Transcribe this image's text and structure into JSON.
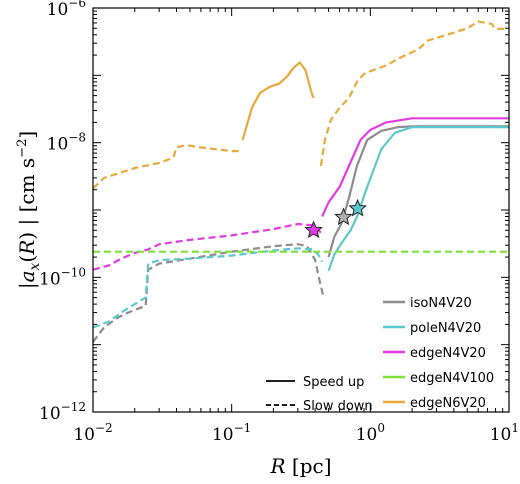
{
  "chart_data": {
    "type": "line",
    "title": "",
    "xlabel": "R [pc]",
    "ylabel": "|a_x(R)| [cm s^-2]",
    "xscale": "log",
    "yscale": "log",
    "xlim": [
      0.01,
      10
    ],
    "ylim": [
      1e-12,
      1e-06
    ],
    "xtick_labels": [
      {
        "v": 0.01,
        "base": "10",
        "exp": "−2"
      },
      {
        "v": 0.1,
        "base": "10",
        "exp": "−1"
      },
      {
        "v": 1,
        "base": "10",
        "exp": "0"
      },
      {
        "v": 10,
        "base": "10",
        "exp": "1"
      }
    ],
    "ytick_labels": [
      {
        "v": 1e-12,
        "base": "10",
        "exp": "−12"
      },
      {
        "v": 1e-10,
        "base": "10",
        "exp": "−10"
      },
      {
        "v": 1e-08,
        "base": "10",
        "exp": "−8"
      },
      {
        "v": 1e-06,
        "base": "10",
        "exp": "−6"
      }
    ],
    "legend_placement": "lower-right",
    "style_legend": [
      {
        "label": "Speed up",
        "dash": "solid"
      },
      {
        "label": "Slow down",
        "dash": "dashed"
      }
    ],
    "series": [
      {
        "name": "isoN4V20",
        "color": "#8c8c8c",
        "segments": [
          {
            "style": "dashed",
            "points": [
              [
                0.01,
                1.1e-11
              ],
              [
                0.012,
                1.8e-11
              ],
              [
                0.015,
                2.5e-11
              ],
              [
                0.018,
                3e-11
              ],
              [
                0.021,
                3.4e-11
              ],
              [
                0.024,
                3.8e-11
              ],
              [
                0.025,
                1.3e-10
              ],
              [
                0.03,
                1.6e-10
              ],
              [
                0.05,
                1.9e-10
              ],
              [
                0.1,
                2.4e-10
              ],
              [
                0.2,
                2.9e-10
              ],
              [
                0.3,
                3.1e-10
              ],
              [
                0.35,
                2.9e-10
              ],
              [
                0.4,
                1.8e-10
              ],
              [
                0.43,
                9e-11
              ],
              [
                0.46,
                5e-11
              ]
            ]
          },
          {
            "style": "solid",
            "points": [
              [
                0.5,
                2e-10
              ],
              [
                0.55,
                4e-10
              ],
              [
                0.62,
                6.3e-10
              ],
              [
                0.7,
                1.5e-09
              ],
              [
                0.8,
                4.5e-09
              ],
              [
                0.95,
                1.1e-08
              ],
              [
                1.2,
                1.5e-08
              ],
              [
                1.6,
                1.7e-08
              ],
              [
                2.0,
                1.75e-08
              ],
              [
                5,
                1.75e-08
              ],
              [
                10,
                1.75e-08
              ]
            ]
          }
        ]
      },
      {
        "name": "poleN4V20",
        "color": "#5bc8cd",
        "segments": [
          {
            "style": "dashed",
            "points": [
              [
                0.01,
                1.8e-11
              ],
              [
                0.013,
                2.2e-11
              ],
              [
                0.016,
                3e-11
              ],
              [
                0.02,
                4e-11
              ],
              [
                0.024,
                5e-11
              ],
              [
                0.025,
                1.6e-10
              ],
              [
                0.03,
                1.8e-10
              ],
              [
                0.05,
                1.9e-10
              ],
              [
                0.1,
                2.1e-10
              ],
              [
                0.2,
                2.5e-10
              ],
              [
                0.3,
                2.7e-10
              ],
              [
                0.38,
                2.6e-10
              ],
              [
                0.42,
                2.2e-10
              ],
              [
                0.45,
                1.7e-10
              ]
            ]
          },
          {
            "style": "solid",
            "points": [
              [
                0.5,
                1.25e-10
              ],
              [
                0.55,
                2.2e-10
              ],
              [
                0.62,
                3.2e-10
              ],
              [
                0.72,
                5e-10
              ],
              [
                0.8,
                7.9e-10
              ],
              [
                0.95,
                2.2e-09
              ],
              [
                1.2,
                8e-09
              ],
              [
                1.5,
                1.4e-08
              ],
              [
                2.0,
                1.7e-08
              ],
              [
                5,
                1.7e-08
              ],
              [
                10,
                1.7e-08
              ]
            ]
          }
        ]
      },
      {
        "name": "edgeN4V20",
        "color": "#e03de0",
        "segments": [
          {
            "style": "dashed",
            "points": [
              [
                0.01,
                1.3e-10
              ],
              [
                0.013,
                1.5e-10
              ],
              [
                0.016,
                1.9e-10
              ],
              [
                0.02,
                2.3e-10
              ],
              [
                0.025,
                2.6e-10
              ],
              [
                0.03,
                3.1e-10
              ],
              [
                0.05,
                3.6e-10
              ],
              [
                0.1,
                4.2e-10
              ],
              [
                0.2,
                5.2e-10
              ],
              [
                0.3,
                6.2e-10
              ],
              [
                0.39,
                5.9e-10
              ],
              [
                0.44,
                4.6e-10
              ]
            ]
          },
          {
            "style": "solid",
            "points": [
              [
                0.45,
                8e-10
              ],
              [
                0.5,
                1.3e-09
              ],
              [
                0.6,
                2.2e-09
              ],
              [
                0.7,
                4.5e-09
              ],
              [
                0.85,
                1.1e-08
              ],
              [
                1.0,
                1.55e-08
              ],
              [
                1.3,
                2e-08
              ],
              [
                2,
                2.3e-08
              ],
              [
                5,
                2.3e-08
              ],
              [
                10,
                2.3e-08
              ]
            ]
          }
        ]
      },
      {
        "name": "edgeN4V100",
        "color": "#7fe03a",
        "segments": [
          {
            "style": "dashed",
            "points": [
              [
                0.01,
                2.4e-10
              ],
              [
                10,
                2.4e-10
              ]
            ]
          }
        ]
      },
      {
        "name": "edgeN6V20",
        "color": "#e8a83a",
        "segments": [
          {
            "style": "dashed",
            "points": [
              [
                0.01,
                2.1e-09
              ],
              [
                0.012,
                3e-09
              ],
              [
                0.02,
                4.2e-09
              ],
              [
                0.03,
                5e-09
              ],
              [
                0.038,
                6e-09
              ],
              [
                0.04,
                8.5e-09
              ],
              [
                0.045,
                9e-09
              ],
              [
                0.05,
                9e-09
              ],
              [
                0.06,
                8.5e-09
              ],
              [
                0.1,
                7.5e-09
              ],
              [
                0.115,
                7.5e-09
              ]
            ]
          },
          {
            "style": "solid",
            "points": [
              [
                0.12,
                1.1e-08
              ],
              [
                0.14,
                3.3e-08
              ],
              [
                0.16,
                5.5e-08
              ],
              [
                0.19,
                6.8e-08
              ],
              [
                0.22,
                7.5e-08
              ],
              [
                0.25,
                9.5e-08
              ],
              [
                0.28,
                1.3e-07
              ],
              [
                0.31,
                1.55e-07
              ],
              [
                0.34,
                1.2e-07
              ],
              [
                0.38,
                5.2e-08
              ],
              [
                0.39,
                4.6e-08
              ]
            ]
          },
          {
            "style": "dashed",
            "points": [
              [
                0.44,
                4.5e-09
              ],
              [
                0.47,
                1.1e-08
              ],
              [
                0.52,
                2.2e-08
              ],
              [
                0.6,
                3.3e-08
              ],
              [
                0.7,
                4.6e-08
              ],
              [
                0.8,
                8e-08
              ],
              [
                0.9,
                1.05e-07
              ],
              [
                1.0,
                1.15e-07
              ],
              [
                1.3,
                1.4e-07
              ],
              [
                1.7,
                1.9e-07
              ],
              [
                2.2,
                2.4e-07
              ],
              [
                2.6,
                3.3e-07
              ],
              [
                3,
                3.6e-07
              ],
              [
                4,
                4.3e-07
              ],
              [
                5,
                5e-07
              ],
              [
                6,
                6.3e-07
              ],
              [
                7.5,
                5.8e-07
              ],
              [
                8,
                4.9e-07
              ],
              [
                10,
                4.9e-07
              ]
            ]
          }
        ]
      }
    ],
    "markers": [
      {
        "series": "edgeN4V20",
        "x": 0.39,
        "y": 5e-10,
        "color": "#e03de0",
        "shape": "star"
      },
      {
        "series": "isoN4V20",
        "x": 0.64,
        "y": 7.8e-10,
        "color": "#b0b0b0",
        "shape": "star"
      },
      {
        "series": "poleN4V20",
        "x": 0.81,
        "y": 1.05e-09,
        "color": "#5bc8cd",
        "shape": "star"
      }
    ]
  }
}
